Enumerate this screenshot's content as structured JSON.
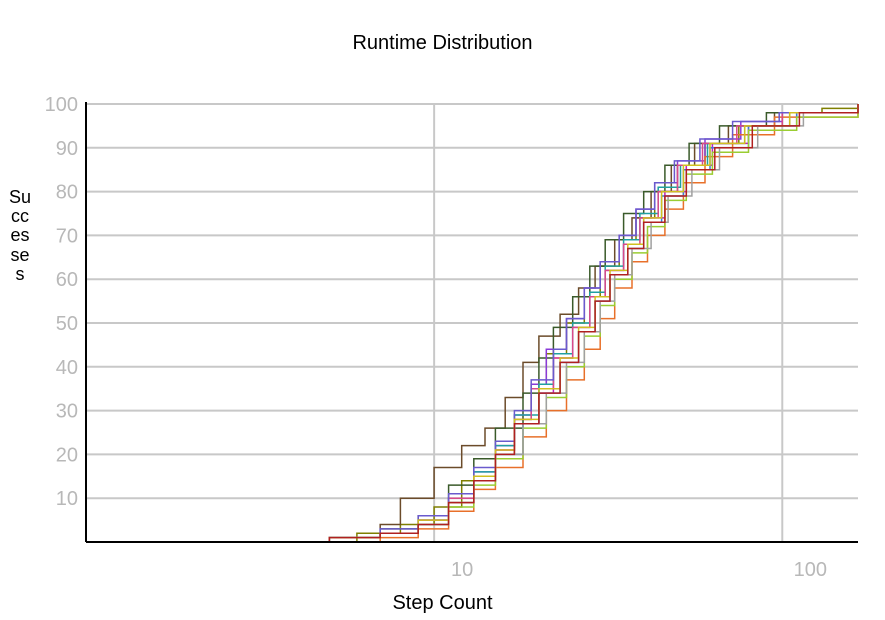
{
  "chart_data": {
    "type": "line",
    "title": "Runtime Distribution",
    "xlabel": "Step Count",
    "ylabel": "Successes",
    "x_scale": "log",
    "xlim": [
      1,
      165
    ],
    "ylim": [
      0,
      100
    ],
    "x_ticks": [
      10,
      100
    ],
    "x_tick_labels": [
      "10",
      "100"
    ],
    "y_ticks": [
      10,
      20,
      30,
      40,
      50,
      60,
      70,
      80,
      90,
      100
    ],
    "y_tick_labels": [
      "10",
      "20",
      "30",
      "40",
      "50",
      "60",
      "70",
      "80",
      "90",
      "100"
    ],
    "grid": true,
    "legend": "none",
    "series": [
      {
        "color": "#7f7f00",
        "values": [
          [
            3,
            0
          ],
          [
            6,
            2
          ],
          [
            8,
            4
          ],
          [
            10,
            8
          ],
          [
            12,
            14
          ],
          [
            15,
            20
          ],
          [
            17,
            28
          ],
          [
            19,
            36
          ],
          [
            21,
            43
          ],
          [
            24,
            50
          ],
          [
            27,
            56
          ],
          [
            30,
            63
          ],
          [
            34,
            69
          ],
          [
            38,
            74
          ],
          [
            43,
            80
          ],
          [
            50,
            86
          ],
          [
            60,
            91
          ],
          [
            75,
            95
          ],
          [
            100,
            98
          ],
          [
            130,
            99
          ],
          [
            165,
            100
          ]
        ]
      },
      {
        "color": "#6b4b2a",
        "values": [
          [
            3,
            0
          ],
          [
            5,
            1
          ],
          [
            7,
            4
          ],
          [
            8,
            10
          ],
          [
            10,
            17
          ],
          [
            12,
            22
          ],
          [
            14,
            26
          ],
          [
            16,
            33
          ],
          [
            18,
            41
          ],
          [
            20,
            47
          ],
          [
            23,
            52
          ],
          [
            26,
            58
          ],
          [
            29,
            63
          ],
          [
            33,
            69
          ],
          [
            37,
            74
          ],
          [
            42,
            80
          ],
          [
            48,
            86
          ],
          [
            56,
            91
          ],
          [
            70,
            95
          ],
          [
            95,
            98
          ],
          [
            165,
            100
          ]
        ]
      },
      {
        "color": "#3a5a2a",
        "values": [
          [
            3,
            0
          ],
          [
            5,
            1
          ],
          [
            7,
            3
          ],
          [
            9,
            6
          ],
          [
            11,
            13
          ],
          [
            13,
            19
          ],
          [
            15,
            26
          ],
          [
            18,
            34
          ],
          [
            20,
            42
          ],
          [
            22,
            49
          ],
          [
            25,
            56
          ],
          [
            28,
            63
          ],
          [
            31,
            69
          ],
          [
            35,
            75
          ],
          [
            40,
            80
          ],
          [
            46,
            86
          ],
          [
            54,
            91
          ],
          [
            66,
            95
          ],
          [
            90,
            98
          ],
          [
            165,
            100
          ]
        ]
      },
      {
        "color": "#8a3ad8",
        "values": [
          [
            3,
            0
          ],
          [
            5,
            1
          ],
          [
            7,
            2
          ],
          [
            9,
            5
          ],
          [
            11,
            10
          ],
          [
            13,
            16
          ],
          [
            15,
            22
          ],
          [
            17,
            29
          ],
          [
            19,
            36
          ],
          [
            21,
            44
          ],
          [
            24,
            51
          ],
          [
            27,
            58
          ],
          [
            30,
            64
          ],
          [
            34,
            70
          ],
          [
            38,
            76
          ],
          [
            43,
            82
          ],
          [
            50,
            87
          ],
          [
            60,
            92
          ],
          [
            76,
            96
          ],
          [
            100,
            98
          ],
          [
            165,
            100
          ]
        ]
      },
      {
        "color": "#c01fc0",
        "values": [
          [
            3,
            0
          ],
          [
            5,
            1
          ],
          [
            7,
            2
          ],
          [
            9,
            5
          ],
          [
            11,
            9
          ],
          [
            13,
            15
          ],
          [
            15,
            21
          ],
          [
            17,
            27
          ],
          [
            20,
            34
          ],
          [
            22,
            42
          ],
          [
            25,
            49
          ],
          [
            28,
            56
          ],
          [
            31,
            62
          ],
          [
            35,
            68
          ],
          [
            40,
            74
          ],
          [
            46,
            80
          ],
          [
            53,
            86
          ],
          [
            63,
            91
          ],
          [
            80,
            95
          ],
          [
            110,
            98
          ],
          [
            165,
            99
          ]
        ]
      },
      {
        "color": "#e8702a",
        "values": [
          [
            3,
            0
          ],
          [
            5,
            0
          ],
          [
            7,
            1
          ],
          [
            9,
            3
          ],
          [
            11,
            7
          ],
          [
            13,
            12
          ],
          [
            15,
            17
          ],
          [
            18,
            24
          ],
          [
            21,
            30
          ],
          [
            24,
            37
          ],
          [
            27,
            44
          ],
          [
            30,
            51
          ],
          [
            33,
            58
          ],
          [
            37,
            64
          ],
          [
            41,
            70
          ],
          [
            46,
            76
          ],
          [
            52,
            82
          ],
          [
            60,
            88
          ],
          [
            72,
            93
          ],
          [
            95,
            97
          ],
          [
            165,
            100
          ]
        ]
      },
      {
        "color": "#20a0a0",
        "values": [
          [
            3,
            0
          ],
          [
            5,
            1
          ],
          [
            7,
            2
          ],
          [
            9,
            5
          ],
          [
            11,
            10
          ],
          [
            13,
            16
          ],
          [
            15,
            22
          ],
          [
            17,
            29
          ],
          [
            20,
            36
          ],
          [
            22,
            43
          ],
          [
            25,
            50
          ],
          [
            28,
            57
          ],
          [
            31,
            63
          ],
          [
            35,
            69
          ],
          [
            39,
            75
          ],
          [
            44,
            81
          ],
          [
            51,
            86
          ],
          [
            61,
            91
          ],
          [
            78,
            95
          ],
          [
            105,
            98
          ],
          [
            165,
            100
          ]
        ]
      },
      {
        "color": "#3a7ad8",
        "values": [
          [
            3,
            0
          ],
          [
            5,
            1
          ],
          [
            7,
            2
          ],
          [
            9,
            4
          ],
          [
            11,
            9
          ],
          [
            13,
            14
          ],
          [
            15,
            20
          ],
          [
            18,
            27
          ],
          [
            20,
            34
          ],
          [
            23,
            41
          ],
          [
            26,
            48
          ],
          [
            29,
            55
          ],
          [
            32,
            61
          ],
          [
            36,
            67
          ],
          [
            40,
            73
          ],
          [
            45,
            79
          ],
          [
            52,
            85
          ],
          [
            62,
            90
          ],
          [
            80,
            95
          ],
          [
            110,
            98
          ],
          [
            165,
            100
          ]
        ]
      },
      {
        "color": "#d84a8a",
        "values": [
          [
            3,
            0
          ],
          [
            5,
            1
          ],
          [
            7,
            2
          ],
          [
            9,
            5
          ],
          [
            11,
            10
          ],
          [
            13,
            15
          ],
          [
            15,
            21
          ],
          [
            17,
            28
          ],
          [
            19,
            35
          ],
          [
            22,
            42
          ],
          [
            25,
            49
          ],
          [
            28,
            56
          ],
          [
            31,
            62
          ],
          [
            35,
            68
          ],
          [
            39,
            74
          ],
          [
            44,
            80
          ],
          [
            50,
            86
          ],
          [
            59,
            91
          ],
          [
            74,
            95
          ],
          [
            100,
            98
          ],
          [
            165,
            100
          ]
        ]
      },
      {
        "color": "#9acd32",
        "values": [
          [
            3,
            0
          ],
          [
            5,
            1
          ],
          [
            7,
            2
          ],
          [
            9,
            4
          ],
          [
            11,
            8
          ],
          [
            13,
            13
          ],
          [
            15,
            19
          ],
          [
            18,
            26
          ],
          [
            21,
            33
          ],
          [
            24,
            40
          ],
          [
            27,
            47
          ],
          [
            30,
            54
          ],
          [
            33,
            60
          ],
          [
            37,
            66
          ],
          [
            41,
            72
          ],
          [
            46,
            78
          ],
          [
            53,
            84
          ],
          [
            63,
            89
          ],
          [
            80,
            94
          ],
          [
            110,
            97
          ],
          [
            165,
            100
          ]
        ]
      },
      {
        "color": "#6a5acd",
        "values": [
          [
            3,
            0
          ],
          [
            5,
            1
          ],
          [
            7,
            3
          ],
          [
            9,
            6
          ],
          [
            11,
            11
          ],
          [
            13,
            17
          ],
          [
            15,
            23
          ],
          [
            17,
            30
          ],
          [
            19,
            37
          ],
          [
            22,
            44
          ],
          [
            24,
            51
          ],
          [
            27,
            58
          ],
          [
            30,
            64
          ],
          [
            34,
            70
          ],
          [
            38,
            76
          ],
          [
            43,
            82
          ],
          [
            49,
            87
          ],
          [
            58,
            92
          ],
          [
            72,
            96
          ],
          [
            98,
            98
          ],
          [
            165,
            100
          ]
        ]
      },
      {
        "color": "#a0a0a0",
        "values": [
          [
            3,
            0
          ],
          [
            5,
            1
          ],
          [
            7,
            2
          ],
          [
            9,
            4
          ],
          [
            11,
            9
          ],
          [
            13,
            14
          ],
          [
            15,
            20
          ],
          [
            18,
            27
          ],
          [
            21,
            34
          ],
          [
            24,
            41
          ],
          [
            27,
            48
          ],
          [
            30,
            55
          ],
          [
            33,
            61
          ],
          [
            37,
            67
          ],
          [
            42,
            73
          ],
          [
            47,
            79
          ],
          [
            55,
            85
          ],
          [
            66,
            90
          ],
          [
            85,
            95
          ],
          [
            115,
            98
          ],
          [
            165,
            100
          ]
        ]
      },
      {
        "color": "#d0c020",
        "values": [
          [
            3,
            0
          ],
          [
            5,
            1
          ],
          [
            7,
            2
          ],
          [
            9,
            5
          ],
          [
            11,
            9
          ],
          [
            13,
            15
          ],
          [
            15,
            21
          ],
          [
            17,
            28
          ],
          [
            20,
            35
          ],
          [
            23,
            42
          ],
          [
            26,
            49
          ],
          [
            29,
            56
          ],
          [
            32,
            62
          ],
          [
            36,
            68
          ],
          [
            40,
            74
          ],
          [
            45,
            80
          ],
          [
            52,
            86
          ],
          [
            62,
            91
          ],
          [
            78,
            95
          ],
          [
            105,
            98
          ],
          [
            165,
            100
          ]
        ]
      },
      {
        "color": "#b02020",
        "values": [
          [
            3,
            0
          ],
          [
            5,
            1
          ],
          [
            7,
            2
          ],
          [
            9,
            4
          ],
          [
            11,
            9
          ],
          [
            13,
            14
          ],
          [
            15,
            20
          ],
          [
            17,
            27
          ],
          [
            20,
            34
          ],
          [
            23,
            41
          ],
          [
            26,
            48
          ],
          [
            29,
            55
          ],
          [
            32,
            61
          ],
          [
            36,
            67
          ],
          [
            40,
            73
          ],
          [
            46,
            79
          ],
          [
            53,
            85
          ],
          [
            64,
            90
          ],
          [
            82,
            95
          ],
          [
            112,
            98
          ],
          [
            165,
            100
          ]
        ]
      }
    ]
  }
}
